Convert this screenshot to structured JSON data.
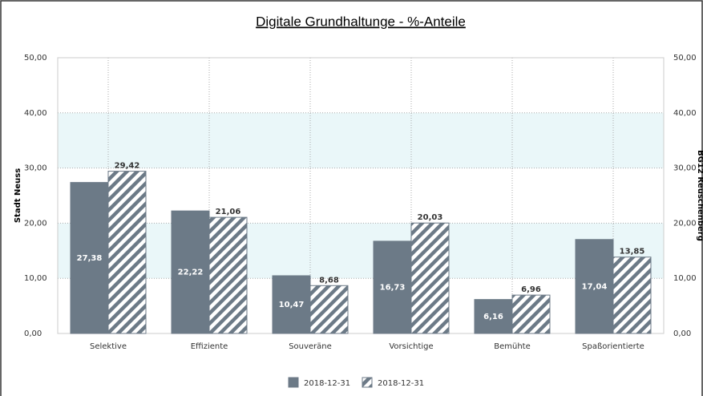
{
  "chart_data": {
    "type": "bar",
    "title": "Digitale Grundhaltunge - %-Anteile",
    "ylabel": "Stadt Neuss",
    "y2label": "BG12 Reuschenberg",
    "categories": [
      "Selektive",
      "Effiziente",
      "Souveräne",
      "Vorsichtige",
      "Bemühte",
      "Spaßorientierte"
    ],
    "series": [
      {
        "name": "2018-12-31",
        "color": "#6c7a87",
        "values": [
          27.38,
          22.22,
          10.47,
          16.73,
          6.16,
          17.04
        ],
        "value_labels": [
          "27,38",
          "22,22",
          "10,47",
          "16,73",
          "6,16",
          "17,04"
        ]
      },
      {
        "name": "2018-12-31",
        "color": "#6c7a87",
        "hatch": true,
        "values": [
          29.42,
          21.06,
          8.68,
          20.03,
          6.96,
          13.85
        ],
        "value_labels": [
          "29,42",
          "21,06",
          "8,68",
          "20,03",
          "6,96",
          "13,85"
        ]
      }
    ],
    "ylim": [
      0,
      50
    ],
    "yticks": [
      {
        "value": 0,
        "label": "0,00"
      },
      {
        "value": 10,
        "label": "10,00"
      },
      {
        "value": 20,
        "label": "20,00"
      },
      {
        "value": 30,
        "label": "30,00"
      },
      {
        "value": 40,
        "label": "40,00"
      },
      {
        "value": 50,
        "label": "50,00"
      }
    ],
    "y2lim": [
      0,
      50
    ],
    "y2ticks": [
      {
        "value": 0,
        "label": "0,00"
      },
      {
        "value": 10,
        "label": "10,00"
      },
      {
        "value": 20,
        "label": "20,00"
      },
      {
        "value": 30,
        "label": "30,00"
      },
      {
        "value": 40,
        "label": "40,00"
      },
      {
        "value": 50,
        "label": "50,00"
      }
    ],
    "grid": true
  }
}
